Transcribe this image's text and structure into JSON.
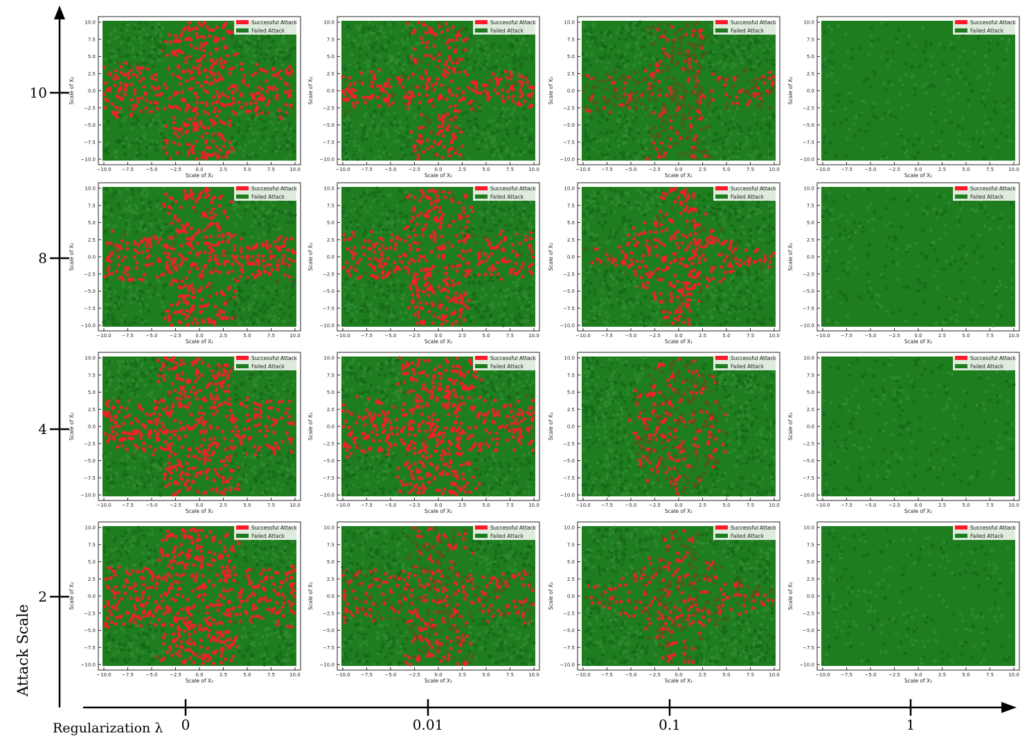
{
  "figure": {
    "y_axis_label": "Attack Scale",
    "x_axis_label": "Regularization λ",
    "attack_scale_ticks": [
      "10",
      "8",
      "4",
      "2"
    ],
    "lambda_ticks": [
      "0",
      "0.01",
      "0.1",
      "1"
    ]
  },
  "colors": {
    "successful": "#ff1a2a",
    "failed": "#1e7d1e",
    "mixed_dark": "#5a5514",
    "axis": "#000000"
  },
  "chart_data": {
    "type": "scatter",
    "panel_grid": {
      "rows": "Attack Scale (10, 8, 4, 2)",
      "cols": "Regularization λ (0, 0.01, 0.1, 1)"
    },
    "subplot": {
      "xlabel": "Scale of X₁",
      "ylabel": "Scale of X₂",
      "xlim": [
        -10,
        10
      ],
      "ylim": [
        -10,
        10
      ],
      "tick_labels": [
        "−10.0",
        "−7.5",
        "−5.0",
        "−2.5",
        "0.0",
        "2.5",
        "5.0",
        "7.5",
        "10.0"
      ],
      "tick_values": [
        -10,
        -7.5,
        -5,
        -2.5,
        0,
        2.5,
        5,
        7.5,
        10
      ],
      "legend": [
        "Successful Attack",
        "Failed Attack"
      ],
      "legend_position": "top-right"
    },
    "panels": [
      {
        "attack_scale": "10",
        "lambda": "0",
        "pattern": "cross",
        "arm_width": 3.2,
        "h_extent": 10,
        "v_extent": 10,
        "red_fraction": 0.95
      },
      {
        "attack_scale": "10",
        "lambda": "0.01",
        "pattern": "cross",
        "arm_width": 2.4,
        "h_extent": 10,
        "v_extent": 10,
        "red_fraction": 0.8
      },
      {
        "attack_scale": "10",
        "lambda": "0.1",
        "pattern": "cross",
        "arm_width": 2.6,
        "h_extent": 10,
        "v_extent": 10,
        "red_fraction": 0.35
      },
      {
        "attack_scale": "10",
        "lambda": "1",
        "pattern": "none"
      },
      {
        "attack_scale": "8",
        "lambda": "0",
        "pattern": "cross",
        "arm_width": 3.1,
        "h_extent": 10,
        "v_extent": 10,
        "red_fraction": 0.95
      },
      {
        "attack_scale": "8",
        "lambda": "0.01",
        "pattern": "cross",
        "arm_width": 2.9,
        "h_extent": 10,
        "v_extent": 10,
        "red_fraction": 0.9
      },
      {
        "attack_scale": "8",
        "lambda": "0.1",
        "pattern": "diamond",
        "arm_width": 2.8,
        "h_extent": 9.5,
        "v_extent": 10,
        "red_fraction": 0.85
      },
      {
        "attack_scale": "8",
        "lambda": "1",
        "pattern": "none"
      },
      {
        "attack_scale": "4",
        "lambda": "0",
        "pattern": "cross",
        "arm_width": 3.6,
        "h_extent": 10,
        "v_extent": 10,
        "red_fraction": 0.95
      },
      {
        "attack_scale": "4",
        "lambda": "0.01",
        "pattern": "cross",
        "arm_width": 3.6,
        "h_extent": 10,
        "v_extent": 10,
        "red_fraction": 0.95
      },
      {
        "attack_scale": "4",
        "lambda": "0.1",
        "pattern": "ellipse",
        "arm_width": 3.5,
        "h_extent": 5,
        "v_extent": 10,
        "red_fraction": 0.45
      },
      {
        "attack_scale": "4",
        "lambda": "1",
        "pattern": "none"
      },
      {
        "attack_scale": "2",
        "lambda": "0",
        "pattern": "cross",
        "arm_width": 3.8,
        "h_extent": 10,
        "v_extent": 10,
        "red_fraction": 0.97
      },
      {
        "attack_scale": "2",
        "lambda": "0.01",
        "pattern": "cross",
        "arm_width": 3.2,
        "h_extent": 10,
        "v_extent": 10,
        "red_fraction": 0.6
      },
      {
        "attack_scale": "2",
        "lambda": "0.1",
        "pattern": "diamond",
        "arm_width": 3.0,
        "h_extent": 10,
        "v_extent": 10,
        "red_fraction": 0.55
      },
      {
        "attack_scale": "2",
        "lambda": "1",
        "pattern": "none"
      }
    ]
  }
}
